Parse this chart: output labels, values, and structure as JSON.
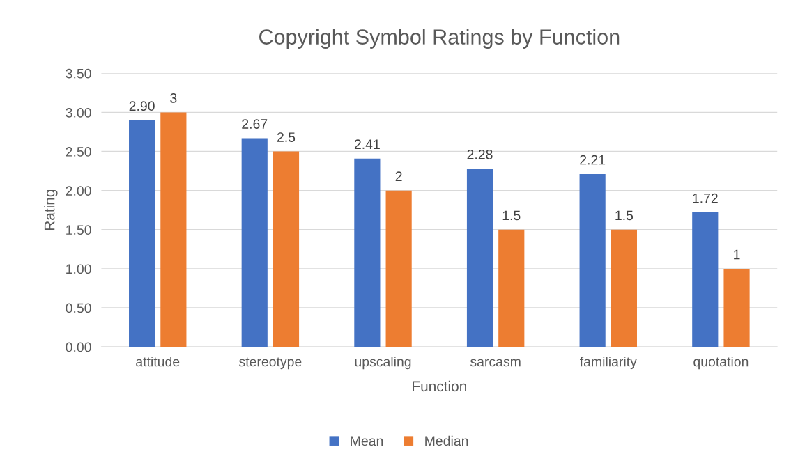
{
  "chart_data": {
    "type": "bar",
    "title": "Copyright Symbol Ratings by Function",
    "xlabel": "Function",
    "ylabel": "Rating",
    "categories": [
      "attitude",
      "stereotype",
      "upscaling",
      "sarcasm",
      "familiarity",
      "quotation"
    ],
    "series": [
      {
        "name": "Mean",
        "color": "#4472c4",
        "values": [
          2.9,
          2.67,
          2.41,
          2.28,
          2.21,
          1.72
        ],
        "value_labels": [
          "2.90",
          "2.67",
          "2.41",
          "2.28",
          "2.21",
          "1.72"
        ]
      },
      {
        "name": "Median",
        "color": "#ed7d31",
        "values": [
          3,
          2.5,
          2,
          1.5,
          1.5,
          1
        ],
        "value_labels": [
          "3",
          "2.5",
          "2",
          "1.5",
          "1.5",
          "1"
        ]
      }
    ],
    "ylim": [
      0,
      3.5
    ],
    "yticks": [
      {
        "value": 0,
        "label": "0.00"
      },
      {
        "value": 0.5,
        "label": "0.50"
      },
      {
        "value": 1,
        "label": "1.00"
      },
      {
        "value": 1.5,
        "label": "1.50"
      },
      {
        "value": 2,
        "label": "2.00"
      },
      {
        "value": 2.5,
        "label": "2.50"
      },
      {
        "value": 3,
        "label": "3.00"
      },
      {
        "value": 3.5,
        "label": "3.50"
      }
    ],
    "grid": "y",
    "legend": "bottom"
  }
}
